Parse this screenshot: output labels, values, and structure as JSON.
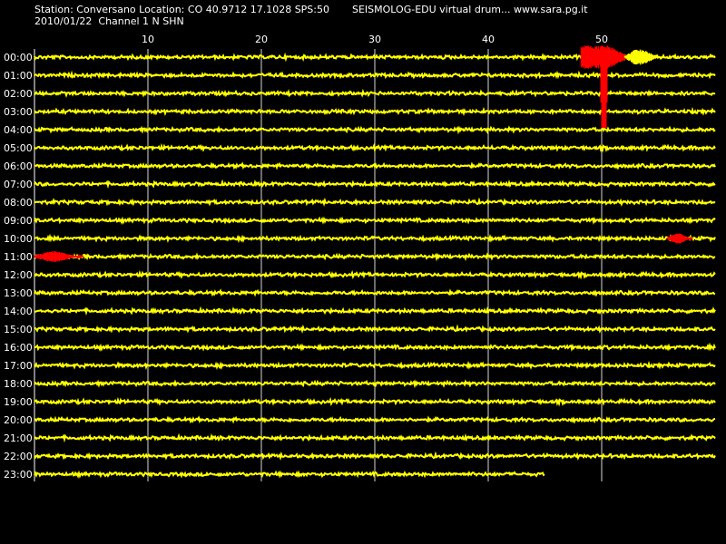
{
  "header": {
    "station_line": "Station: Conversano Location: CO 40.9712 17.1028 SPS:50",
    "date_line": "2010/01/22  Channel 1 N SHN",
    "title": "SEISMOLOG-EDU virtual drum... www.sara.pg.it"
  },
  "drum": {
    "minute_ticks": [
      "10",
      "20",
      "30",
      "40",
      "50"
    ],
    "minute_tick_values": [
      10,
      20,
      30,
      40,
      50
    ],
    "minutes_per_row": 60,
    "hour_labels": [
      "00:00",
      "01:00",
      "02:00",
      "03:00",
      "04:00",
      "05:00",
      "06:00",
      "07:00",
      "08:00",
      "09:00",
      "10:00",
      "11:00",
      "12:00",
      "13:00",
      "14:00",
      "15:00",
      "16:00",
      "17:00",
      "18:00",
      "19:00",
      "20:00",
      "21:00",
      "22:00",
      "23:00"
    ],
    "last_row_end_minute": 45,
    "colors": {
      "background": "#000000",
      "trace": "#ffff00",
      "event": "#ff0000",
      "grid": "#ffffff",
      "text": "#ffffff"
    },
    "events": [
      {
        "row": 0,
        "start_minute": 48.2,
        "end_minute": 52.5,
        "color": "event",
        "type": "large-quake"
      },
      {
        "row": 0,
        "start_minute": 52.0,
        "end_minute": 55.5,
        "color": "trace",
        "type": "coda"
      },
      {
        "row": 10,
        "start_minute": 55.8,
        "end_minute": 58.0,
        "color": "event",
        "type": "small-quake"
      },
      {
        "row": 11,
        "start_minute": 0.0,
        "end_minute": 4.3,
        "color": "event",
        "type": "small-quake"
      }
    ]
  }
}
